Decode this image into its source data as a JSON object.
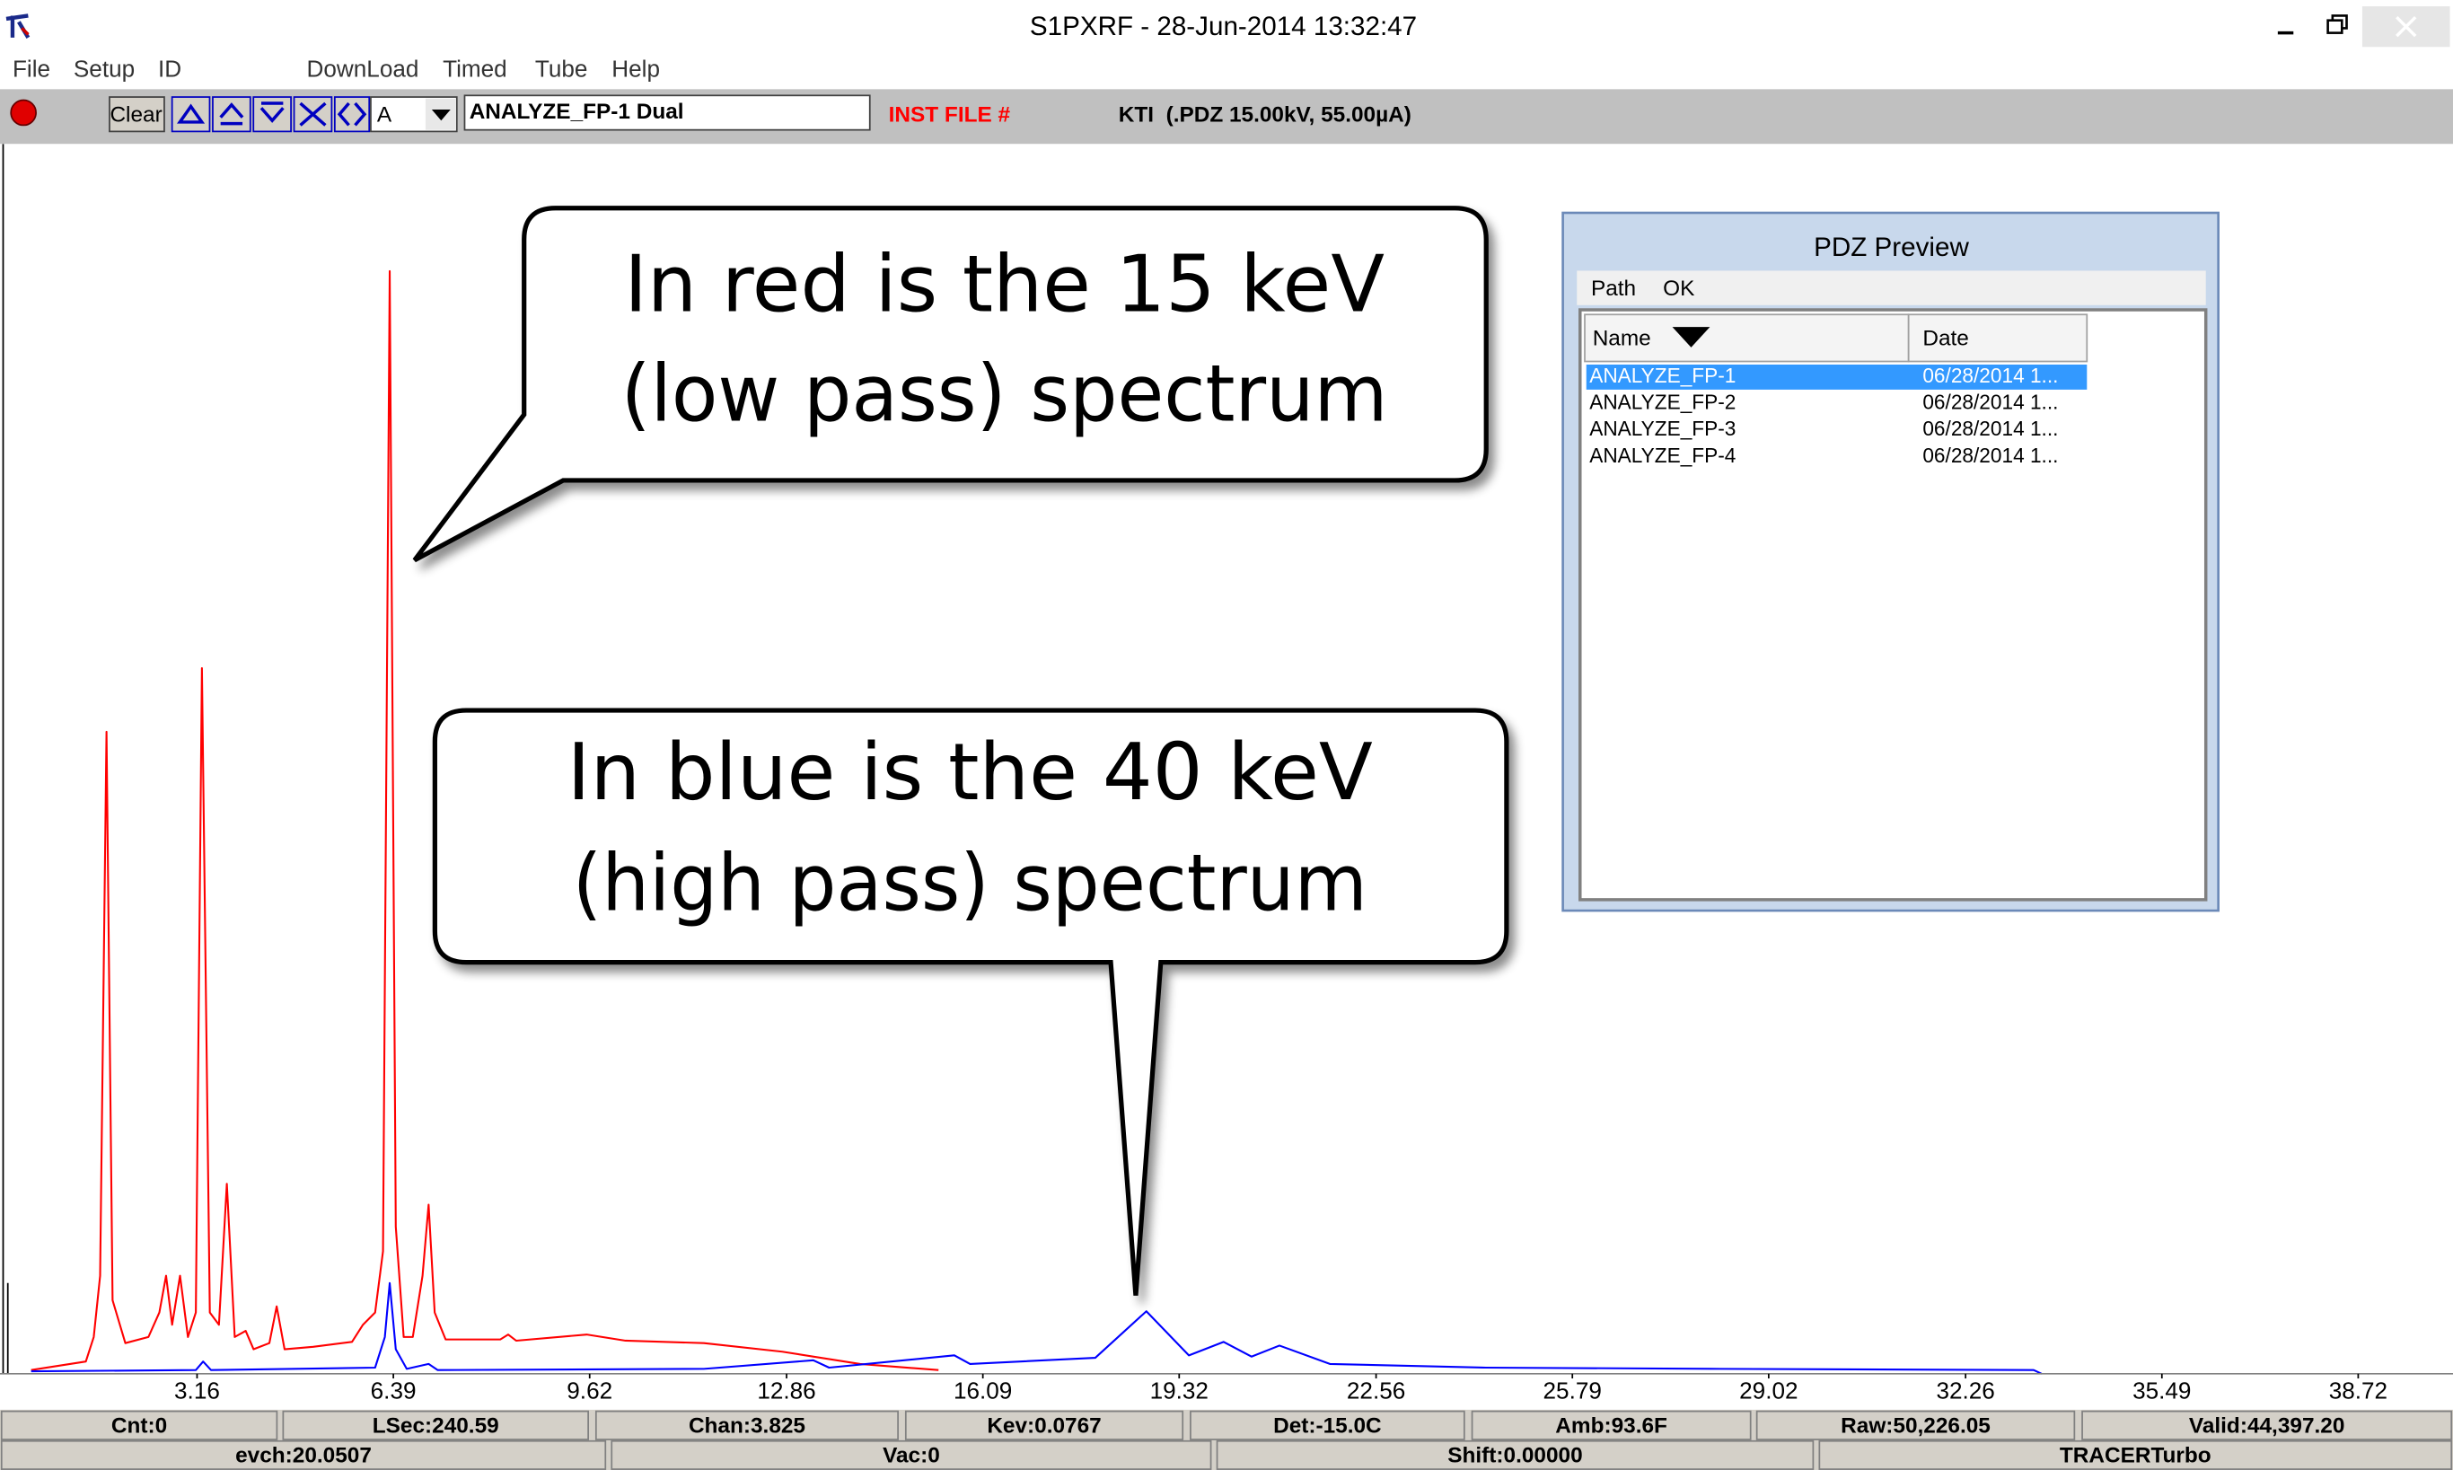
{
  "window": {
    "title": "S1PXRF - 28-Jun-2014 13:32:47"
  },
  "menu": [
    "File",
    "Setup",
    "ID",
    "DownLoad",
    "Timed",
    "Tube",
    "Help"
  ],
  "toolbar": {
    "clear": "Clear",
    "combo": "A",
    "file": "ANALYZE_FP-1 Dual",
    "inst": "INST FILE #",
    "kti": "KTI  (.PDZ 15.00kV, 55.00µA)"
  },
  "callouts": [
    {
      "lines": [
        "In red is the 15 keV",
        "(low pass) spectrum"
      ]
    },
    {
      "lines": [
        "In blue is the 40 keV",
        "(high pass) spectrum"
      ]
    }
  ],
  "chart_data": {
    "type": "line",
    "xlim": [
      0,
      40.28
    ],
    "xticks": [
      3.16,
      6.39,
      9.62,
      12.86,
      16.09,
      19.32,
      22.56,
      25.79,
      29.02,
      32.26,
      35.49,
      38.72
    ],
    "ylim": [
      0,
      100
    ],
    "series": [
      {
        "color": "#ff0000",
        "x": [
          0.43,
          1.33,
          1.46,
          1.565,
          1.67,
          1.77,
          1.98,
          2.36,
          2.54,
          2.65,
          2.75,
          2.88,
          3.01,
          3.14,
          3.24,
          3.37,
          3.52,
          3.65,
          3.78,
          3.96,
          4.09,
          4.35,
          4.47,
          4.6,
          5.07,
          5.71,
          5.89,
          6.09,
          6.22,
          6.33,
          6.43,
          6.56,
          6.71,
          6.87,
          6.97,
          7.07,
          7.25,
          8.15,
          8.28,
          8.41,
          9.57,
          10.21,
          11.5,
          12.79,
          14.07,
          15.36
        ],
        "values": [
          0.3,
          1,
          3,
          8,
          52.4,
          6,
          2.5,
          3,
          5,
          8,
          4,
          8,
          3,
          5,
          57.6,
          5,
          4,
          15.5,
          3,
          3.5,
          2,
          2.5,
          5.5,
          2,
          2.2,
          2.6,
          4,
          5,
          10,
          90,
          12,
          3,
          3,
          8,
          13.8,
          5,
          2.8,
          2.8,
          3.2,
          2.7,
          3.2,
          2.7,
          2.5,
          1.8,
          0.8,
          0.3
        ]
      },
      {
        "color": "#0000ff",
        "x": [
          0.43,
          3.14,
          3.26,
          3.39,
          6.09,
          6.25,
          6.33,
          6.43,
          6.61,
          6.97,
          7.12,
          11.5,
          13.3,
          13.56,
          15.62,
          15.88,
          17.94,
          18.78,
          19.48,
          20.05,
          20.51,
          20.97,
          21.8,
          24.37,
          28.23,
          33.38,
          33.51
        ],
        "values": [
          0.2,
          0.3,
          1,
          0.3,
          0.5,
          3,
          7.4,
          2,
          0.4,
          0.8,
          0.3,
          0.4,
          1.1,
          0.5,
          1.5,
          0.8,
          1.3,
          5.1,
          1.5,
          2.6,
          1.4,
          2.3,
          0.8,
          0.5,
          0.4,
          0.3,
          0
        ]
      }
    ]
  },
  "status": [
    [
      "Cnt:0",
      "LSec:240.59",
      "Chan:3.825",
      "Kev:0.0767",
      "Det:-15.0C",
      "Amb:93.6F",
      "Raw:50,226.05",
      "Valid:44,397.20"
    ],
    [
      "evch:20.0507",
      "Vac:0",
      "Shift:0.00000",
      "TRACERTurbo"
    ]
  ],
  "pdz_preview": {
    "title": "PDZ Preview",
    "menu": [
      "Path",
      "OK"
    ],
    "columns": [
      "Name",
      "Date"
    ],
    "rows": [
      [
        "ANALYZE_FP-1",
        "06/28/2014 1..."
      ],
      [
        "ANALYZE_FP-2",
        "06/28/2014 1..."
      ],
      [
        "ANALYZE_FP-3",
        "06/28/2014 1..."
      ],
      [
        "ANALYZE_FP-4",
        "06/28/2014 1..."
      ]
    ]
  }
}
